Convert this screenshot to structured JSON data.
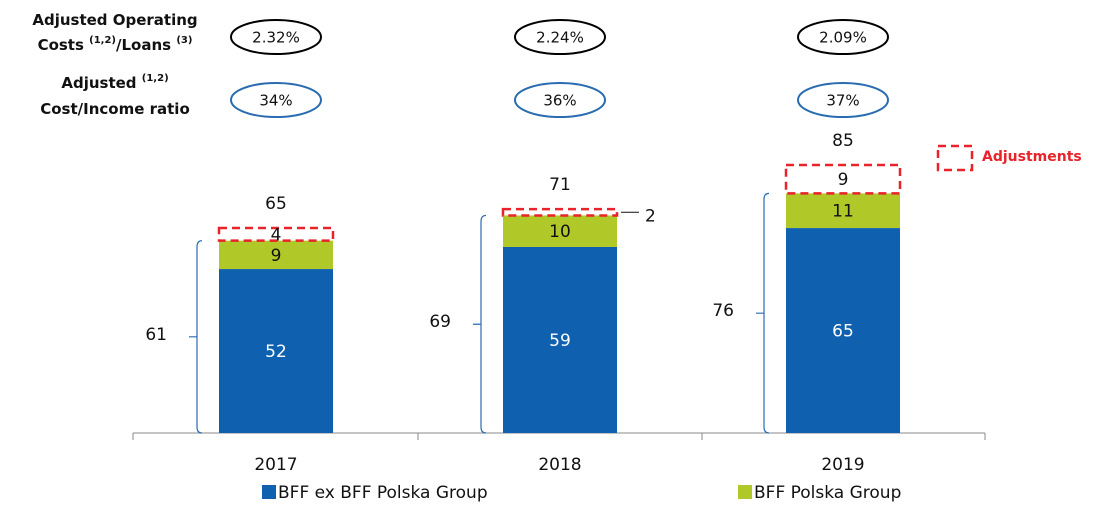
{
  "chart_data": {
    "type": "stacked_bar",
    "categories": [
      "2017",
      "2018",
      "2019"
    ],
    "series": [
      {
        "name": "BFF ex BFF Polska Group",
        "color": "#1060b0",
        "values": [
          52,
          59,
          65
        ]
      },
      {
        "name": "BFF Polska Group",
        "color": "#b0c928",
        "values": [
          9,
          10,
          11
        ]
      },
      {
        "name": "Adjustments",
        "color": "#e8232a",
        "style": "dashed",
        "values": [
          4,
          2,
          9
        ]
      }
    ],
    "totals": [
      65,
      71,
      85
    ],
    "subtotals": [
      61,
      69,
      76
    ],
    "metrics": [
      {
        "label": [
          "Adjusted Operating",
          "Costs",
          "(1,2)",
          "/Loans",
          "(3)"
        ],
        "color": "#000000",
        "values": [
          2.32,
          2.24,
          2.09
        ],
        "value_labels": [
          "2.32%",
          "2.24%",
          "2.09%"
        ]
      },
      {
        "label": [
          "Adjusted",
          "(1,2)",
          "Cost/Income ratio"
        ],
        "color": "#2a6cb0",
        "values": [
          34,
          36,
          37
        ],
        "value_labels": [
          "34%",
          "36%",
          "37%"
        ]
      }
    ]
  }
}
